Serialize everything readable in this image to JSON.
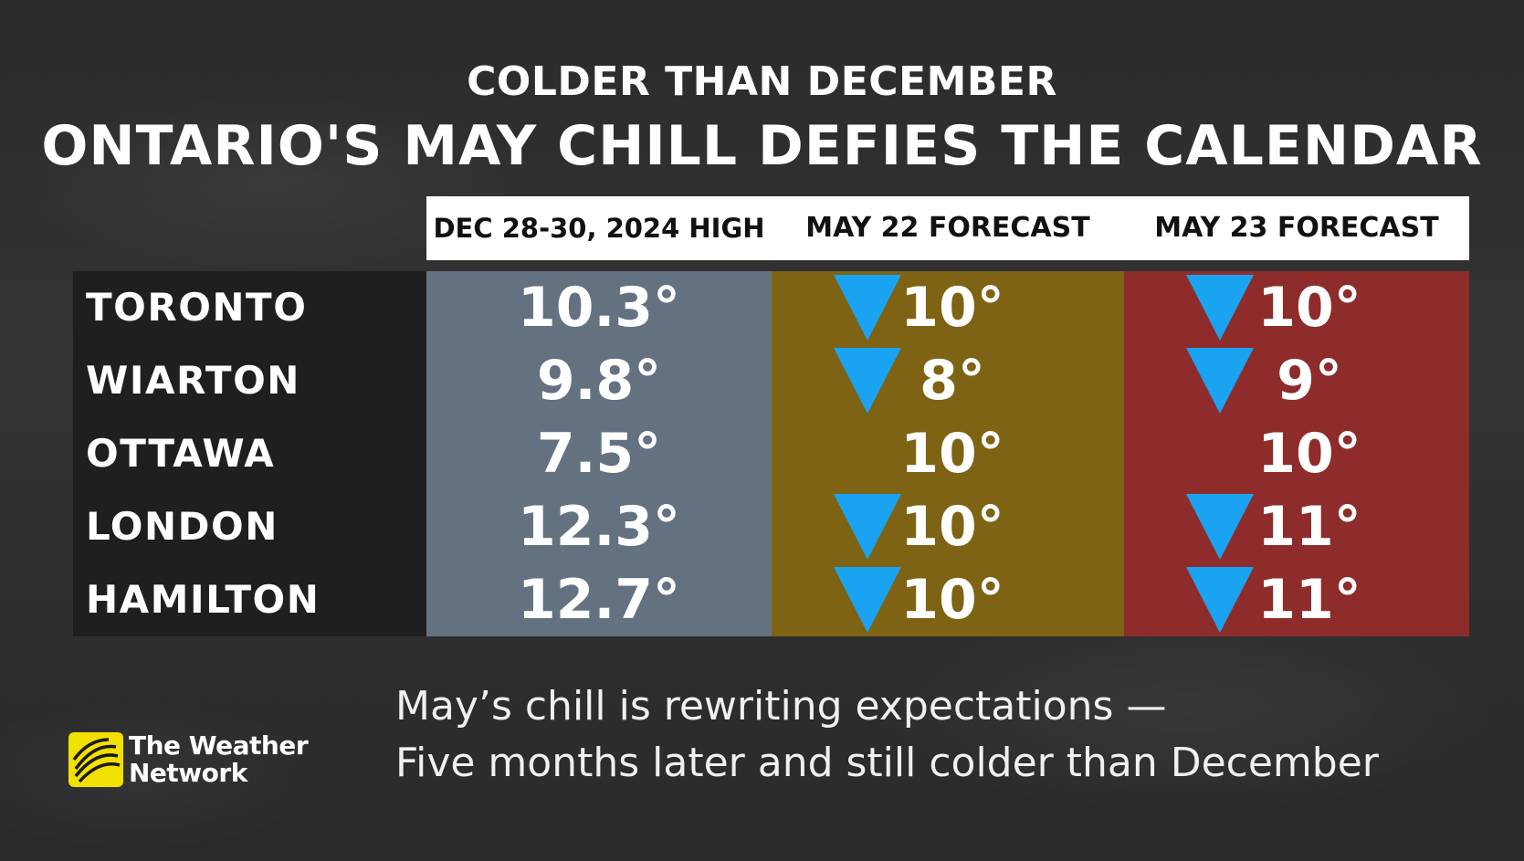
{
  "headline": {
    "kicker": "COLDER THAN DECEMBER",
    "title": "ONTARIO'S MAY CHILL DEFIES THE CALENDAR"
  },
  "table": {
    "columns": [
      "DEC 28-30, 2024 HIGH",
      "MAY 22 FORECAST",
      "MAY 23 FORECAST"
    ],
    "column_colors": [
      "#637180",
      "#7d6313",
      "#8d2c2b"
    ],
    "arrow_color": "#1aa3f0",
    "arrow_icon": "down-arrow-icon",
    "rows": [
      {
        "city": "TORONTO",
        "dec": "10.3°",
        "may22": "10°",
        "may22_arrow": true,
        "may23": "10°",
        "may23_arrow": true
      },
      {
        "city": "WIARTON",
        "dec": "9.8°",
        "may22": "8°",
        "may22_arrow": true,
        "may23": "9°",
        "may23_arrow": true
      },
      {
        "city": "OTTAWA",
        "dec": "7.5°",
        "may22": "10°",
        "may22_arrow": false,
        "may23": "10°",
        "may23_arrow": false
      },
      {
        "city": "LONDON",
        "dec": "12.3°",
        "may22": "10°",
        "may22_arrow": true,
        "may23": "11°",
        "may23_arrow": true
      },
      {
        "city": "HAMILTON",
        "dec": "12.7°",
        "may22": "10°",
        "may22_arrow": true,
        "may23": "11°",
        "may23_arrow": true
      }
    ]
  },
  "caption": {
    "line1": "May’s chill is rewriting expectations —",
    "line2": "Five months later and still colder than December"
  },
  "logo": {
    "line1": "The Weather",
    "line2": "Network",
    "color": "#f2e000"
  }
}
